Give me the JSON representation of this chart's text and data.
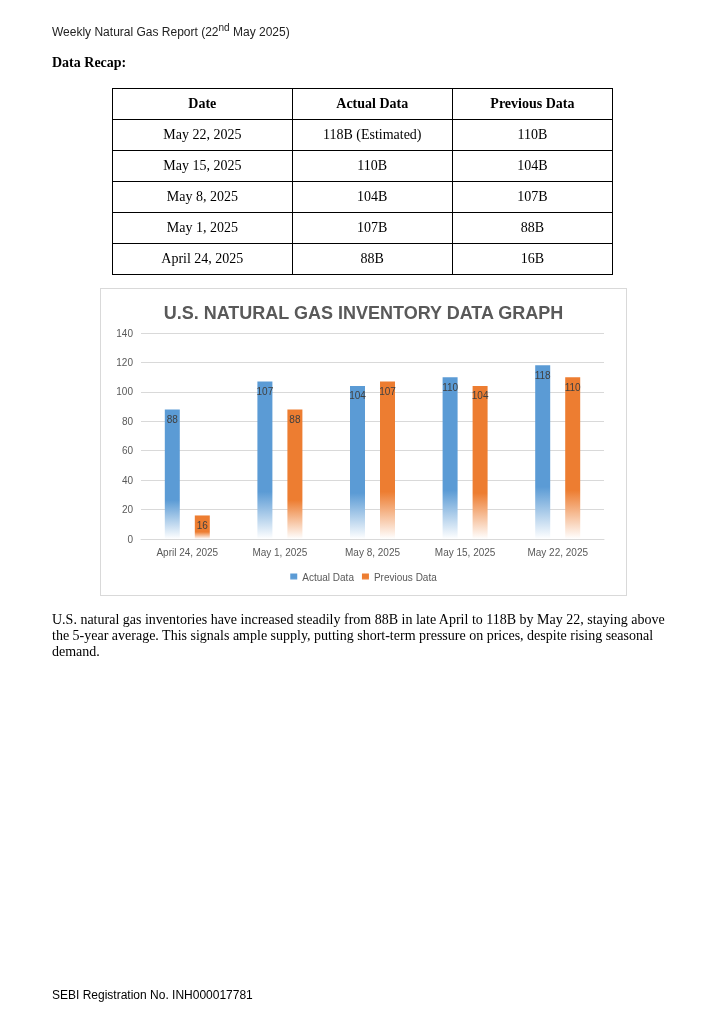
{
  "chart_data": [
    {
      "type": "other",
      "subtitle": "Weekly Natural Gas Report (22$^{nd}$ May 2025)",
      "title": "Data Recap:",
      "annotations": [
        "Date",
        "Actual Data",
        "Previous Data",
        "May 22, 2025",
        "118B (Estimated)",
        "110B",
        "May 15, 2025",
        "110B",
        "104B",
        "May 8, 2025",
        "104B",
        "107B",
        "May 1, 2025",
        "107B",
        "88B",
        "April 24, 2025",
        "88B",
        "16B"
      ]
    },
    {
      "type": "bar",
      "title": "U.S. NATURAL GAS INVENTORY DATA GRAPH",
      "categories": [
        "April 24, 2025",
        "May 1, 2025",
        "May 8, 2025",
        "May 15, 2025",
        "May 22, 2025"
      ],
      "series": [
        {
          "name": "Actual Data",
          "color": "#5b9bd5",
          "values": [
            88,
            107,
            104,
            110,
            118
          ]
        },
        {
          "name": "Previous Data",
          "color": "#ed7d31",
          "values": [
            16,
            88,
            107,
            104,
            110
          ]
        }
      ],
      "ylim": [
        0,
        140
      ],
      "yticks": [
        0,
        20,
        40,
        60,
        80,
        100,
        120,
        140
      ],
      "grid": "y",
      "legend": "bottom",
      "data_labels": true,
      "annotations": [
        "U.S. natural gas inventories have increased steadily from 88B in late April to 118B by May 22, staying above the 5-year average. This signals ample supply, putting short-term pressure on prices, despite rising seasonal demand.",
        "SEBI Registration No. INH000017781"
      ]
    }
  ]
}
